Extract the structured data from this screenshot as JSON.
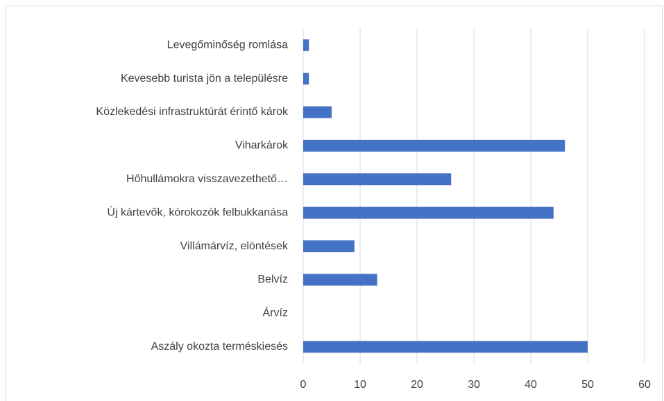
{
  "chart_data": {
    "type": "bar",
    "orientation": "horizontal",
    "categories": [
      "Levegőminőség romlása",
      "Kevesebb turista jön a településre",
      "Közlekedési infrastruktúrát érintő károk",
      "Viharkárok",
      "Hőhullámokra visszavezethető…",
      "Új kártevők, kórokozók felbukkanása",
      "Villámárvíz, elöntések",
      "Belvíz",
      "Árvíz",
      "Aszály okozta terméskiesés"
    ],
    "values": [
      1,
      1,
      5,
      46,
      26,
      44,
      9,
      13,
      0,
      50
    ],
    "color": "#4472c4",
    "xlim": [
      0,
      60
    ],
    "xticks": [
      0,
      10,
      20,
      30,
      40,
      50,
      60
    ],
    "grid": true
  }
}
